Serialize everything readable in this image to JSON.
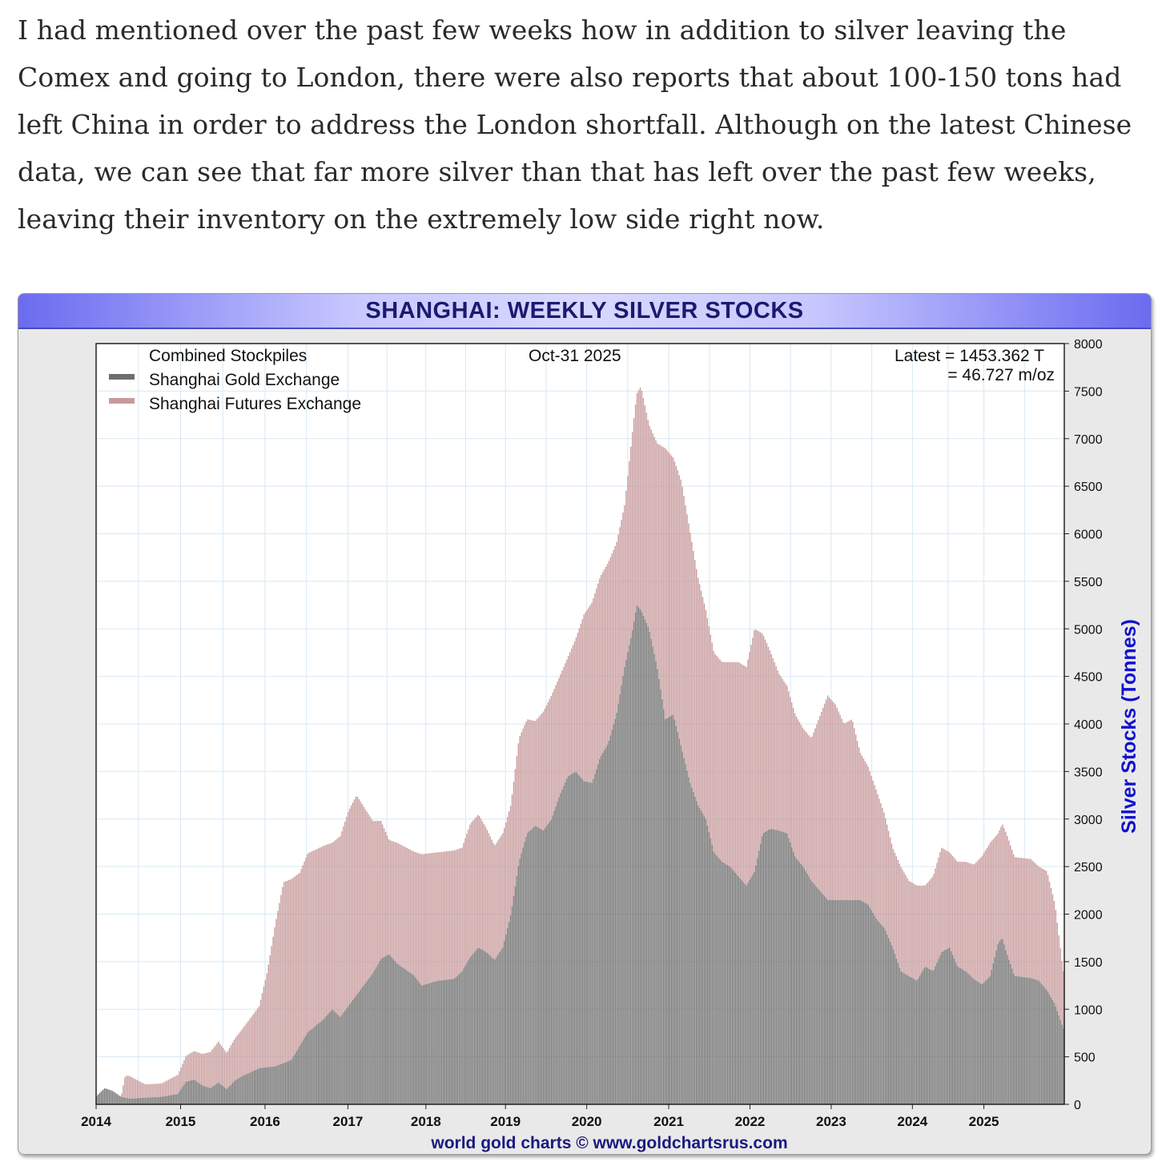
{
  "article": {
    "paragraph": "I had mentioned over the past few weeks how in addition to silver leaving the Comex and going to London, there were also reports that about 100-150 tons had left China in order to address the London shortfall. Although on the latest Chinese data, we can see that far more silver than that has left over the past few weeks, leaving their inventory on the extremely low side right now."
  },
  "colors": {
    "sge": "#6e6e6e",
    "shfe": "#c79a9b",
    "title_text": "#1a1a70",
    "axis_label": "#1010d0",
    "footer": "#1a1a80",
    "grid": "#d8e8f4"
  },
  "chart_data": {
    "type": "area",
    "title": "SHANGHAI: WEEKLY SILVER STOCKS",
    "subtitle": "Combined Stockpiles",
    "date_label": "Oct-31  2025",
    "latest_tonnes": "Latest = 1453.362 T",
    "latest_moz": "= 46.727 m/oz",
    "ylabel": "Silver Stocks (Tonnes)",
    "footer": "world gold charts © www.goldchartsrus.com",
    "stacked": true,
    "xlim": [
      2014,
      2025.92
    ],
    "ylim": [
      0,
      8000
    ],
    "x_ticks": [
      "2014",
      "2015",
      "2016",
      "2017",
      "2018",
      "2019",
      "2020",
      "2021",
      "2022",
      "2023",
      "2024",
      "2025"
    ],
    "x_tick_values": [
      2014,
      2015.04,
      2016.08,
      2017.1,
      2018.06,
      2019.04,
      2020.04,
      2021.05,
      2022.05,
      2023.05,
      2024.05,
      2024.93
    ],
    "y_ticks": [
      0,
      500,
      1000,
      1500,
      2000,
      2500,
      3000,
      3500,
      4000,
      4500,
      5000,
      5500,
      6000,
      6500,
      7000,
      7500,
      8000
    ],
    "series": [
      {
        "name": "Shanghai Gold Exchange",
        "points": [
          [
            2014.0,
            90
          ],
          [
            2014.1,
            170
          ],
          [
            2014.2,
            140
          ],
          [
            2014.3,
            80
          ],
          [
            2014.4,
            60
          ],
          [
            2014.6,
            70
          ],
          [
            2014.8,
            80
          ],
          [
            2015.0,
            110
          ],
          [
            2015.1,
            240
          ],
          [
            2015.2,
            260
          ],
          [
            2015.3,
            200
          ],
          [
            2015.4,
            170
          ],
          [
            2015.5,
            230
          ],
          [
            2015.6,
            160
          ],
          [
            2015.7,
            250
          ],
          [
            2015.8,
            300
          ],
          [
            2016.0,
            380
          ],
          [
            2016.2,
            400
          ],
          [
            2016.4,
            470
          ],
          [
            2016.6,
            760
          ],
          [
            2016.8,
            900
          ],
          [
            2016.9,
            1000
          ],
          [
            2017.0,
            920
          ],
          [
            2017.2,
            1150
          ],
          [
            2017.4,
            1380
          ],
          [
            2017.5,
            1530
          ],
          [
            2017.6,
            1580
          ],
          [
            2017.7,
            1480
          ],
          [
            2017.9,
            1360
          ],
          [
            2018.0,
            1250
          ],
          [
            2018.2,
            1300
          ],
          [
            2018.4,
            1320
          ],
          [
            2018.5,
            1400
          ],
          [
            2018.6,
            1550
          ],
          [
            2018.7,
            1650
          ],
          [
            2018.8,
            1600
          ],
          [
            2018.9,
            1520
          ],
          [
            2019.0,
            1650
          ],
          [
            2019.1,
            2000
          ],
          [
            2019.2,
            2550
          ],
          [
            2019.3,
            2850
          ],
          [
            2019.4,
            2930
          ],
          [
            2019.5,
            2880
          ],
          [
            2019.6,
            3000
          ],
          [
            2019.7,
            3250
          ],
          [
            2019.8,
            3450
          ],
          [
            2019.9,
            3500
          ],
          [
            2020.0,
            3400
          ],
          [
            2020.1,
            3380
          ],
          [
            2020.2,
            3650
          ],
          [
            2020.3,
            3800
          ],
          [
            2020.4,
            4100
          ],
          [
            2020.5,
            4600
          ],
          [
            2020.6,
            5000
          ],
          [
            2020.65,
            5250
          ],
          [
            2020.7,
            5200
          ],
          [
            2020.8,
            5000
          ],
          [
            2020.9,
            4600
          ],
          [
            2021.0,
            4050
          ],
          [
            2021.1,
            4100
          ],
          [
            2021.2,
            3750
          ],
          [
            2021.3,
            3400
          ],
          [
            2021.4,
            3150
          ],
          [
            2021.5,
            3000
          ],
          [
            2021.6,
            2650
          ],
          [
            2021.7,
            2550
          ],
          [
            2021.8,
            2500
          ],
          [
            2021.9,
            2400
          ],
          [
            2022.0,
            2300
          ],
          [
            2022.1,
            2450
          ],
          [
            2022.2,
            2850
          ],
          [
            2022.3,
            2900
          ],
          [
            2022.4,
            2880
          ],
          [
            2022.5,
            2850
          ],
          [
            2022.6,
            2600
          ],
          [
            2022.7,
            2500
          ],
          [
            2022.8,
            2350
          ],
          [
            2023.0,
            2150
          ],
          [
            2023.2,
            2150
          ],
          [
            2023.4,
            2150
          ],
          [
            2023.5,
            2100
          ],
          [
            2023.6,
            1950
          ],
          [
            2023.7,
            1850
          ],
          [
            2023.8,
            1650
          ],
          [
            2023.9,
            1400
          ],
          [
            2024.0,
            1350
          ],
          [
            2024.1,
            1300
          ],
          [
            2024.2,
            1450
          ],
          [
            2024.3,
            1400
          ],
          [
            2024.4,
            1600
          ],
          [
            2024.5,
            1650
          ],
          [
            2024.6,
            1450
          ],
          [
            2024.7,
            1400
          ],
          [
            2024.8,
            1320
          ],
          [
            2024.9,
            1260
          ],
          [
            2025.0,
            1350
          ],
          [
            2025.1,
            1700
          ],
          [
            2025.15,
            1750
          ],
          [
            2025.2,
            1600
          ],
          [
            2025.3,
            1350
          ],
          [
            2025.5,
            1330
          ],
          [
            2025.6,
            1300
          ],
          [
            2025.7,
            1200
          ],
          [
            2025.8,
            1050
          ],
          [
            2025.9,
            800
          ]
        ]
      },
      {
        "name": "Shanghai Futures Exchange",
        "points": [
          [
            2014.0,
            0
          ],
          [
            2014.3,
            0
          ],
          [
            2014.35,
            230
          ],
          [
            2014.4,
            240
          ],
          [
            2014.6,
            140
          ],
          [
            2014.8,
            140
          ],
          [
            2015.0,
            200
          ],
          [
            2015.1,
            270
          ],
          [
            2015.3,
            330
          ],
          [
            2015.5,
            430
          ],
          [
            2015.6,
            380
          ],
          [
            2015.8,
            500
          ],
          [
            2016.0,
            650
          ],
          [
            2016.1,
            1000
          ],
          [
            2016.2,
            1500
          ],
          [
            2016.3,
            1900
          ],
          [
            2016.4,
            1900
          ],
          [
            2016.5,
            1820
          ],
          [
            2016.6,
            1880
          ],
          [
            2016.8,
            1820
          ],
          [
            2016.9,
            1750
          ],
          [
            2017.0,
            1900
          ],
          [
            2017.1,
            2050
          ],
          [
            2017.2,
            2100
          ],
          [
            2017.3,
            1850
          ],
          [
            2017.4,
            1600
          ],
          [
            2017.5,
            1450
          ],
          [
            2017.6,
            1200
          ],
          [
            2017.7,
            1270
          ],
          [
            2017.9,
            1300
          ],
          [
            2018.0,
            1380
          ],
          [
            2018.2,
            1350
          ],
          [
            2018.4,
            1350
          ],
          [
            2018.5,
            1300
          ],
          [
            2018.6,
            1400
          ],
          [
            2018.7,
            1400
          ],
          [
            2018.8,
            1300
          ],
          [
            2018.9,
            1200
          ],
          [
            2019.0,
            1200
          ],
          [
            2019.1,
            1150
          ],
          [
            2019.2,
            1300
          ],
          [
            2019.3,
            1200
          ],
          [
            2019.4,
            1100
          ],
          [
            2019.5,
            1250
          ],
          [
            2019.6,
            1300
          ],
          [
            2019.7,
            1250
          ],
          [
            2019.8,
            1250
          ],
          [
            2019.9,
            1400
          ],
          [
            2020.0,
            1750
          ],
          [
            2020.1,
            1900
          ],
          [
            2020.2,
            1900
          ],
          [
            2020.3,
            1900
          ],
          [
            2020.4,
            1800
          ],
          [
            2020.5,
            1700
          ],
          [
            2020.6,
            2100
          ],
          [
            2020.7,
            2350
          ],
          [
            2020.8,
            2150
          ],
          [
            2020.9,
            2350
          ],
          [
            2021.0,
            2850
          ],
          [
            2021.1,
            2700
          ],
          [
            2021.2,
            2800
          ],
          [
            2021.3,
            2650
          ],
          [
            2021.4,
            2400
          ],
          [
            2021.5,
            2200
          ],
          [
            2021.6,
            2100
          ],
          [
            2021.7,
            2100
          ],
          [
            2021.8,
            2150
          ],
          [
            2021.9,
            2250
          ],
          [
            2022.0,
            2300
          ],
          [
            2022.1,
            2550
          ],
          [
            2022.2,
            2100
          ],
          [
            2022.3,
            1850
          ],
          [
            2022.4,
            1650
          ],
          [
            2022.5,
            1550
          ],
          [
            2022.6,
            1500
          ],
          [
            2022.7,
            1450
          ],
          [
            2022.8,
            1500
          ],
          [
            2023.0,
            2150
          ],
          [
            2023.1,
            2050
          ],
          [
            2023.2,
            1850
          ],
          [
            2023.3,
            1900
          ],
          [
            2023.4,
            1550
          ],
          [
            2023.5,
            1450
          ],
          [
            2023.6,
            1350
          ],
          [
            2023.7,
            1200
          ],
          [
            2023.8,
            1050
          ],
          [
            2023.9,
            1100
          ],
          [
            2024.0,
            1000
          ],
          [
            2024.1,
            1000
          ],
          [
            2024.2,
            850
          ],
          [
            2024.3,
            1000
          ],
          [
            2024.4,
            1100
          ],
          [
            2024.5,
            1000
          ],
          [
            2024.6,
            1100
          ],
          [
            2024.7,
            1150
          ],
          [
            2024.8,
            1200
          ],
          [
            2024.9,
            1350
          ],
          [
            2025.0,
            1400
          ],
          [
            2025.1,
            1150
          ],
          [
            2025.2,
            1250
          ],
          [
            2025.3,
            1250
          ],
          [
            2025.5,
            1250
          ],
          [
            2025.6,
            1200
          ],
          [
            2025.7,
            1250
          ],
          [
            2025.8,
            1050
          ],
          [
            2025.9,
            600
          ]
        ]
      }
    ]
  }
}
